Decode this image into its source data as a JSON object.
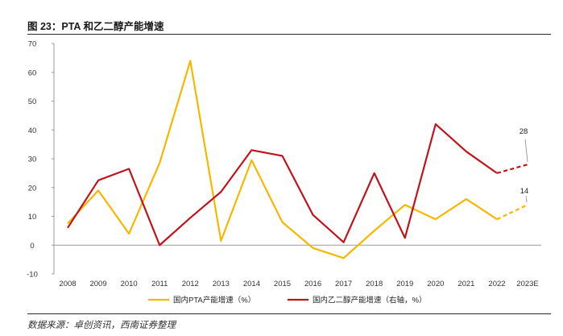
{
  "figure": {
    "title": "图 23：PTA 和乙二醇产能增速",
    "source": "数据来源：卓创资讯，西南证券整理"
  },
  "colors": {
    "pta": "#f5b800",
    "meg": "#c0141c",
    "axis": "#9a9a9a"
  },
  "chart_data": {
    "type": "line",
    "title": "PTA 和乙二醇产能增速",
    "categories": [
      "2008",
      "2009",
      "2010",
      "2011",
      "2012",
      "2013",
      "2014",
      "2015",
      "2016",
      "2017",
      "2018",
      "2019",
      "2020",
      "2021",
      "2022",
      "2023E"
    ],
    "ylim": [
      -10,
      70
    ],
    "yticks": [
      -10,
      0,
      10,
      20,
      30,
      40,
      50,
      60,
      70
    ],
    "grid": false,
    "legend_position": "bottom",
    "series": [
      {
        "name": "国内PTA产能增速（%）",
        "values": [
          7.5,
          19,
          4,
          28.5,
          64,
          1.5,
          29.5,
          8,
          -1,
          -4.5,
          5,
          14,
          9,
          16,
          9,
          14
        ],
        "forecast_from_index": 14,
        "end_label": "14"
      },
      {
        "name": "国内乙二醇产能增速（右轴，%）",
        "values": [
          6,
          22.5,
          26.5,
          0,
          9.5,
          18.5,
          33,
          31,
          10.5,
          1,
          25,
          2.5,
          42,
          32.5,
          25,
          28
        ],
        "forecast_from_index": 14,
        "end_label": "28"
      }
    ]
  }
}
